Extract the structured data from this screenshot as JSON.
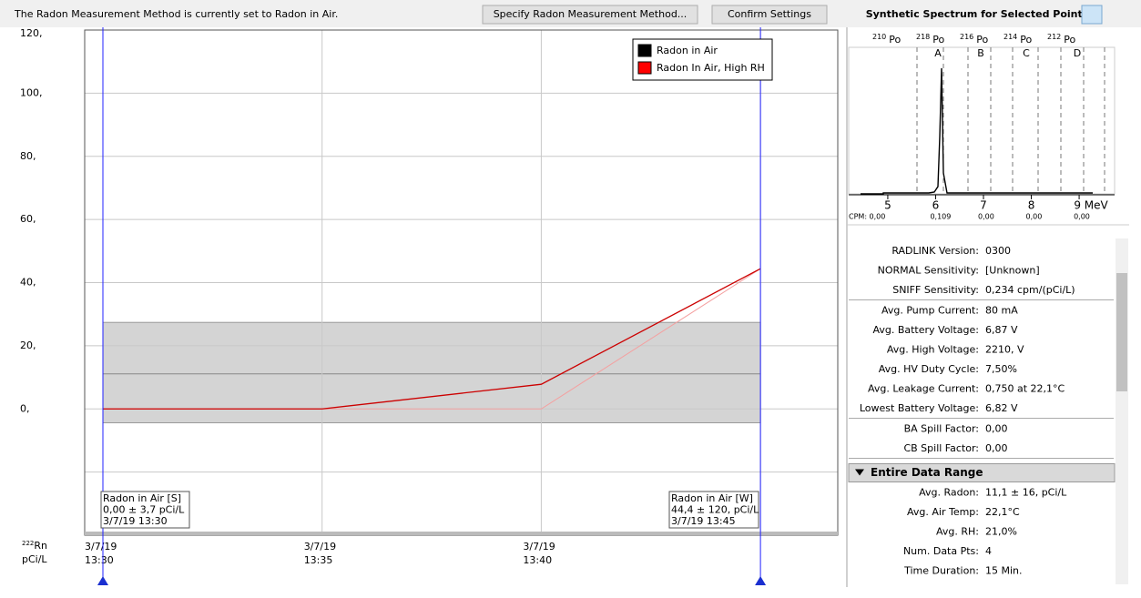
{
  "toolbar": {
    "status": "The Radon Measurement Method is currently set to Radon in Air.",
    "buttons": [
      "Specify Radon Measurement Method...",
      "Confirm Settings"
    ],
    "spectrum_title": "Synthetic Spectrum for Selected Points"
  },
  "chart_data": {
    "type": "line",
    "categories": [
      "3/7/19 13:30",
      "3/7/19 13:35",
      "3/7/19 13:40",
      null
    ],
    "series": [
      {
        "name": "Radon in Air",
        "color": "#000000",
        "line_color": "#f4a0a0",
        "values": [
          0,
          0,
          0,
          44.4
        ]
      },
      {
        "name": "Radon In Air, High RH",
        "color": "#ff0000",
        "line_color": "#cc0000",
        "values": [
          0,
          0,
          7.8,
          44.4
        ]
      }
    ],
    "ylim": [
      -40,
      120
    ],
    "yticks": [
      {
        "value": 0,
        "label": "0,"
      },
      {
        "value": 20,
        "label": "20,"
      },
      {
        "value": 40,
        "label": "40,"
      },
      {
        "value": 60,
        "label": "60,"
      },
      {
        "value": 80,
        "label": "80,"
      },
      {
        "value": 100,
        "label": "100,"
      },
      {
        "value": 120,
        "label": "120,"
      }
    ],
    "unlabeled_gridlines": [
      -20
    ],
    "band": {
      "low": -4.4,
      "high": 27.4,
      "mean": 11.1
    },
    "ylabel": [
      "222Rn",
      "pCi/L"
    ],
    "annotations": [
      {
        "lines": [
          "Radon in Air [S]",
          "0,00 ± 3,7 pCi/L",
          "3/7/19 13:30"
        ]
      },
      {
        "lines": [
          "Radon in Air [W]",
          "44,4 ± 120, pCi/L",
          "3/7/19 13:45"
        ]
      }
    ]
  },
  "spectrum": {
    "isotopes": [
      "210",
      "218",
      "216",
      "214",
      "212"
    ],
    "isotope_symbol": "Po",
    "regions": [
      "A",
      "B",
      "C",
      "D"
    ],
    "xlim": [
      4.24,
      9.76
    ],
    "xticks": [
      5,
      6,
      7,
      8,
      {
        "value": 9,
        "label": "9 MeV"
      }
    ],
    "cpm": [
      "CPM: 0,00",
      "0,109",
      "0,00",
      "0,00",
      "0,00"
    ]
  },
  "info": {
    "groups": [
      [
        {
          "label": "RADLINK Version:",
          "value": "0300"
        },
        {
          "label": "NORMAL Sensitivity:",
          "value": "[Unknown]"
        },
        {
          "label": "SNIFF Sensitivity:",
          "value": "0,234 cpm/(pCi/L)"
        }
      ],
      [
        {
          "label": "Avg. Pump Current:",
          "value": "80 mA"
        },
        {
          "label": "Avg. Battery Voltage:",
          "value": "6,87 V"
        },
        {
          "label": "Avg. High Voltage:",
          "value": "2210, V"
        },
        {
          "label": "Avg. HV Duty Cycle:",
          "value": "7,50%"
        },
        {
          "label": "Avg. Leakage Current:",
          "value": "0,750 at 22,1°C"
        },
        {
          "label": "Lowest Battery Voltage:",
          "value": "6,82 V"
        }
      ],
      [
        {
          "label": "BA Spill Factor:",
          "value": "0,00"
        },
        {
          "label": "CB Spill Factor:",
          "value": "0,00"
        }
      ]
    ],
    "section": "Entire Data Range",
    "section_rows": [
      {
        "label": "Avg. Radon:",
        "value": "11,1 ± 16, pCi/L"
      },
      {
        "label": "Avg. Air Temp:",
        "value": "22,1°C"
      },
      {
        "label": "Avg. RH:",
        "value": "21,0%"
      },
      {
        "label": "Num. Data Pts:",
        "value": "4"
      },
      {
        "label": "Time Duration:",
        "value": "15 Min."
      }
    ]
  }
}
